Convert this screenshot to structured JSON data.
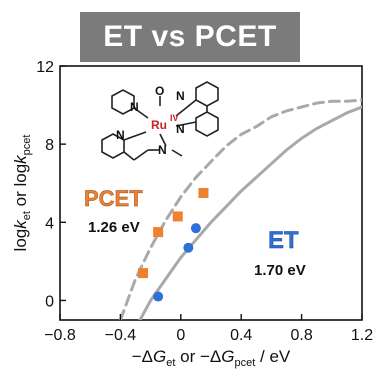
{
  "title": "ET vs PCET",
  "colors": {
    "banner": "#7b7b7b",
    "pcet": "#f07f2e",
    "et": "#2e6fd8",
    "curve": "#a9a9a9",
    "ruthenium": "#cc2222",
    "bond": "#222222"
  },
  "chart_data": {
    "type": "scatter",
    "xlabel": "−ΔGet or −ΔGpcet / eV",
    "ylabel": "logket or logkpcet",
    "xlim": [
      -0.8,
      1.2
    ],
    "ylim": [
      -1,
      12
    ],
    "x_ticks": [
      "−0.8",
      "−0.4",
      "0",
      "0.4",
      "0.8",
      "1.2"
    ],
    "y_ticks": [
      "0",
      "4",
      "8",
      "12"
    ],
    "series": [
      {
        "name": "PCET",
        "marker": "square",
        "x": [
          -0.25,
          -0.15,
          -0.02,
          0.15
        ],
        "y": [
          1.4,
          3.5,
          4.3,
          5.5
        ]
      },
      {
        "name": "ET",
        "marker": "circle",
        "x": [
          -0.15,
          0.05,
          0.1
        ],
        "y": [
          0.2,
          2.7,
          3.7
        ]
      }
    ],
    "fit_curves": [
      {
        "name": "PCET",
        "style": "dashed",
        "x": [
          -0.4,
          -0.3,
          -0.2,
          -0.1,
          0.0,
          0.1,
          0.2,
          0.3,
          0.4,
          0.5,
          0.6,
          0.7,
          0.8,
          0.9,
          1.0,
          1.1,
          1.2
        ],
        "y": [
          -1.0,
          1.1,
          2.7,
          4.1,
          5.3,
          6.3,
          7.1,
          7.9,
          8.5,
          8.9,
          9.4,
          9.7,
          9.9,
          10.1,
          10.2,
          10.2,
          10.25
        ]
      },
      {
        "name": "ET",
        "style": "solid",
        "x": [
          -0.27,
          -0.2,
          -0.1,
          0.0,
          0.1,
          0.2,
          0.3,
          0.4,
          0.5,
          0.6,
          0.7,
          0.8,
          0.9,
          1.0,
          1.1,
          1.2
        ],
        "y": [
          -1.0,
          0.0,
          1.1,
          2.2,
          3.1,
          4.0,
          4.8,
          5.6,
          6.3,
          7.0,
          7.7,
          8.3,
          8.8,
          9.2,
          9.6,
          9.9
        ]
      }
    ],
    "annotations": [
      {
        "label": "PCET",
        "value": "1.26 eV"
      },
      {
        "label": "ET",
        "value": "1.70 eV"
      }
    ]
  },
  "structure": {
    "metal": "Ru",
    "oxidation": "IV",
    "oxo": "O",
    "nitrogen": "N"
  }
}
